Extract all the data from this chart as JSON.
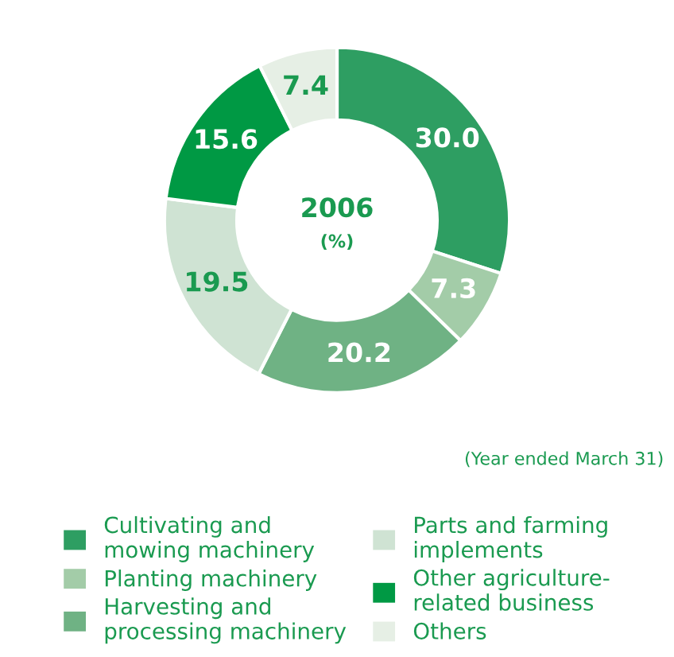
{
  "chart_data": {
    "type": "donut",
    "title": "2006",
    "subtitle": "(%)",
    "annotations": [
      "(Year ended March 31)"
    ],
    "categories": [
      "Cultivating and mowing machinery",
      "Planting machinery",
      "Harvesting and processing machinery",
      "Parts and farming implements",
      "Other agriculture-related business",
      "Others"
    ],
    "values": [
      30.0,
      7.3,
      20.2,
      19.5,
      15.6,
      7.4
    ],
    "colors": [
      "#2e9e62",
      "#a3cca8",
      "#6fb284",
      "#cfe3d3",
      "#009944",
      "#e6efe5"
    ],
    "value_labels": [
      "30.0",
      "7.3",
      "20.2",
      "19.5",
      "15.6",
      "7.4"
    ],
    "legend": "bottom"
  }
}
